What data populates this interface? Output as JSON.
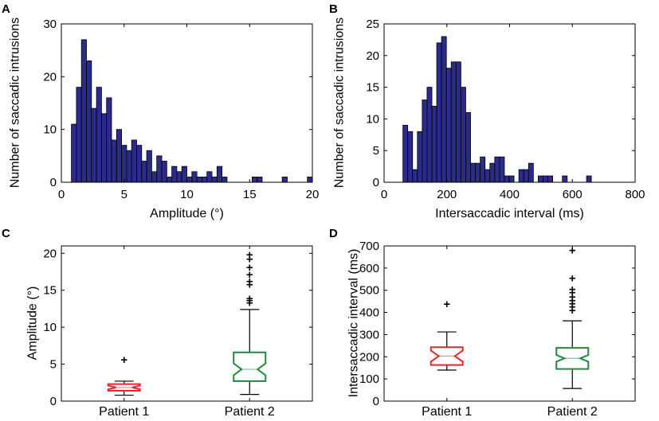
{
  "chart_data": [
    {
      "panel": "A",
      "type": "bar",
      "subtype": "histogram",
      "xlabel": "Amplitude (°)",
      "ylabel": "Number of saccadic intrusions",
      "xlim": [
        0,
        20
      ],
      "ylim": [
        0,
        30
      ],
      "xticks": [
        0,
        5,
        10,
        15,
        20
      ],
      "yticks": [
        0,
        10,
        20,
        30
      ],
      "bar_color": "#2b2b8c",
      "bin_width": 0.4,
      "bins_start": [
        0.8,
        1.2,
        1.6,
        2.0,
        2.4,
        2.8,
        3.2,
        3.6,
        4.0,
        4.4,
        4.8,
        5.2,
        5.6,
        6.0,
        6.4,
        6.8,
        7.2,
        7.6,
        8.0,
        8.4,
        8.8,
        9.2,
        9.6,
        10.0,
        10.4,
        10.8,
        11.2,
        11.6,
        12.0,
        12.4,
        12.8,
        13.2,
        13.6,
        14.0,
        14.4,
        14.8,
        15.2,
        15.6,
        16.0,
        16.4,
        16.8,
        17.2,
        17.6,
        18.0,
        18.4,
        18.8,
        19.2,
        19.6
      ],
      "counts": [
        11,
        18,
        27,
        23,
        14,
        18,
        13,
        16,
        8,
        10,
        7,
        6,
        8,
        7,
        4,
        6,
        2,
        5,
        4,
        1,
        3,
        2,
        3,
        1,
        2,
        1,
        1,
        2,
        1,
        3,
        1,
        0,
        0,
        0,
        0,
        0,
        1,
        1,
        0,
        0,
        0,
        0,
        1,
        0,
        0,
        0,
        0,
        1
      ]
    },
    {
      "panel": "B",
      "type": "bar",
      "subtype": "histogram",
      "xlabel": "Intersaccadic interval (ms)",
      "ylabel": "Number of saccadic intrusions",
      "xlim": [
        0,
        800
      ],
      "ylim": [
        0,
        25
      ],
      "xticks": [
        0,
        200,
        400,
        600,
        800
      ],
      "yticks": [
        0,
        5,
        10,
        15,
        20,
        25
      ],
      "bar_color": "#2b2b8c",
      "bin_width": 15.4,
      "bins_start": [
        60,
        75.4,
        90.8,
        106.2,
        121.6,
        137,
        152.4,
        167.8,
        183.2,
        198.6,
        214,
        229.4,
        244.8,
        260.2,
        275.6,
        291,
        306.4,
        321.8,
        337.2,
        352.6,
        368,
        383.4,
        398.8,
        414.2,
        429.6,
        445,
        460.4,
        475.8,
        491.2,
        506.6,
        522,
        537.4,
        552.8,
        568.2,
        583.6,
        599,
        614.4,
        629.8,
        645.2,
        660.6
      ],
      "counts": [
        9,
        8,
        2,
        8,
        13,
        15,
        12,
        22,
        23,
        18,
        19,
        19,
        15,
        11,
        3,
        3,
        4,
        2,
        3,
        4,
        4,
        1,
        1,
        0,
        2,
        2,
        3,
        0,
        1,
        1,
        1,
        0,
        0,
        1,
        0,
        0,
        0,
        0,
        1,
        0
      ]
    },
    {
      "panel": "C",
      "type": "boxplot",
      "ylabel": "Amplitude (°)",
      "ylim": [
        0,
        21
      ],
      "yticks": [
        0,
        5,
        10,
        15,
        20
      ],
      "categories": [
        "Patient 1",
        "Patient 2"
      ],
      "series": [
        {
          "name": "Patient 1",
          "color": "#e8262a",
          "whisker_low": 0.8,
          "q1": 1.4,
          "median": 1.85,
          "q3": 2.3,
          "notch_low": 1.6,
          "notch_high": 2.1,
          "whisker_high": 2.7,
          "outliers": [
            5.6
          ]
        },
        {
          "name": "Patient 2",
          "color": "#1f8a3c",
          "whisker_low": 0.9,
          "q1": 2.7,
          "median": 4.3,
          "q3": 6.6,
          "notch_low": 3.5,
          "notch_high": 5.1,
          "whisker_high": 12.4,
          "outliers": [
            13.3,
            13.6,
            13.9,
            15.8,
            16.2,
            17.1,
            18.1,
            19.2,
            19.8
          ]
        }
      ]
    },
    {
      "panel": "D",
      "type": "boxplot",
      "ylabel": "Intersaccadic interval (ms)",
      "ylim": [
        0,
        700
      ],
      "yticks": [
        0,
        100,
        200,
        300,
        400,
        500,
        600,
        700
      ],
      "categories": [
        "Patient 1",
        "Patient 2"
      ],
      "series": [
        {
          "name": "Patient 1",
          "color": "#e8262a",
          "whisker_low": 140,
          "q1": 163,
          "median": 203,
          "q3": 243,
          "notch_low": 178,
          "notch_high": 228,
          "whisker_high": 312,
          "outliers": [
            438
          ]
        },
        {
          "name": "Patient 2",
          "color": "#1f8a3c",
          "whisker_low": 57,
          "q1": 145,
          "median": 193,
          "q3": 240,
          "notch_low": 178,
          "notch_high": 208,
          "whisker_high": 362,
          "outliers": [
            410,
            425,
            440,
            455,
            470,
            490,
            505,
            555,
            680
          ]
        }
      ]
    }
  ],
  "panel_letters": [
    "A",
    "B",
    "C",
    "D"
  ]
}
